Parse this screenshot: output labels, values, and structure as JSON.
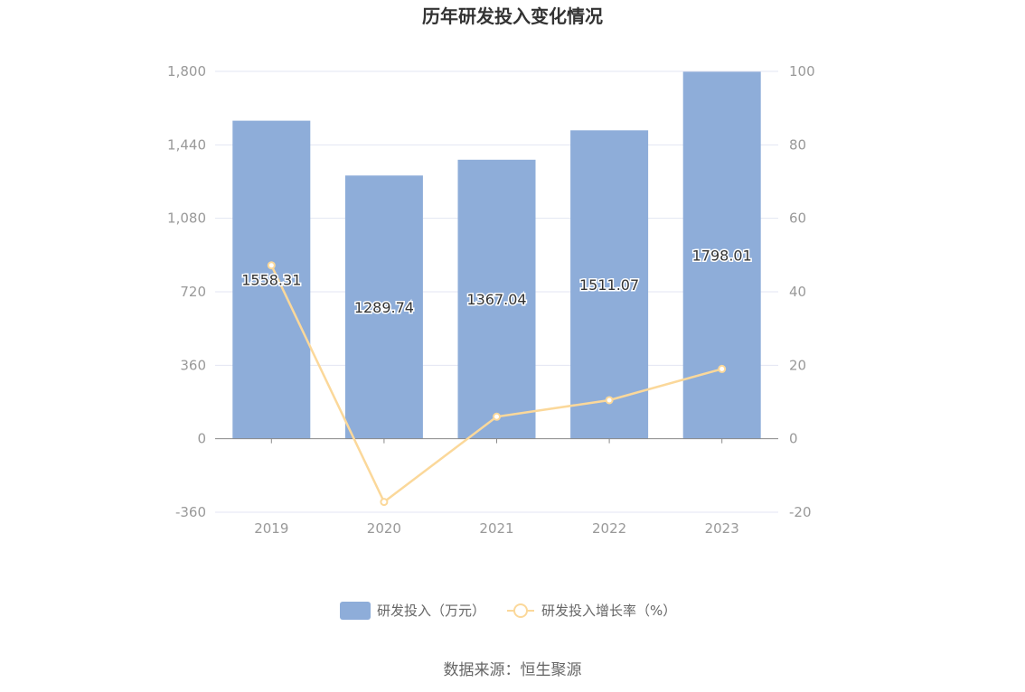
{
  "chart_data": {
    "type": "bar",
    "title": "历年研发投入变化情况",
    "categories": [
      "2019",
      "2020",
      "2021",
      "2022",
      "2023"
    ],
    "series": [
      {
        "name": "研发投入（万元）",
        "type": "bar",
        "axis": "left",
        "values": [
          1558.31,
          1289.74,
          1367.04,
          1511.07,
          1798.01
        ],
        "labels": [
          "1558.31",
          "1289.74",
          "1367.04",
          "1511.07",
          "1798.01"
        ],
        "color": "#8eadd9"
      },
      {
        "name": "研发投入增长率（%）",
        "type": "line",
        "axis": "right",
        "values": [
          47.2,
          -17.2,
          6.0,
          10.5,
          19.0
        ],
        "color": "#fbd89a"
      }
    ],
    "y_left": {
      "min": -360,
      "max": 1800,
      "ticks": [
        "-360",
        "0",
        "360",
        "720",
        "1,080",
        "1,440",
        "1,800"
      ]
    },
    "y_right": {
      "min": -20,
      "max": 100,
      "ticks": [
        "-20",
        "0",
        "20",
        "40",
        "60",
        "80",
        "100"
      ]
    },
    "grid": true,
    "legend_position": "bottom"
  },
  "source": "数据来源：恒生聚源"
}
